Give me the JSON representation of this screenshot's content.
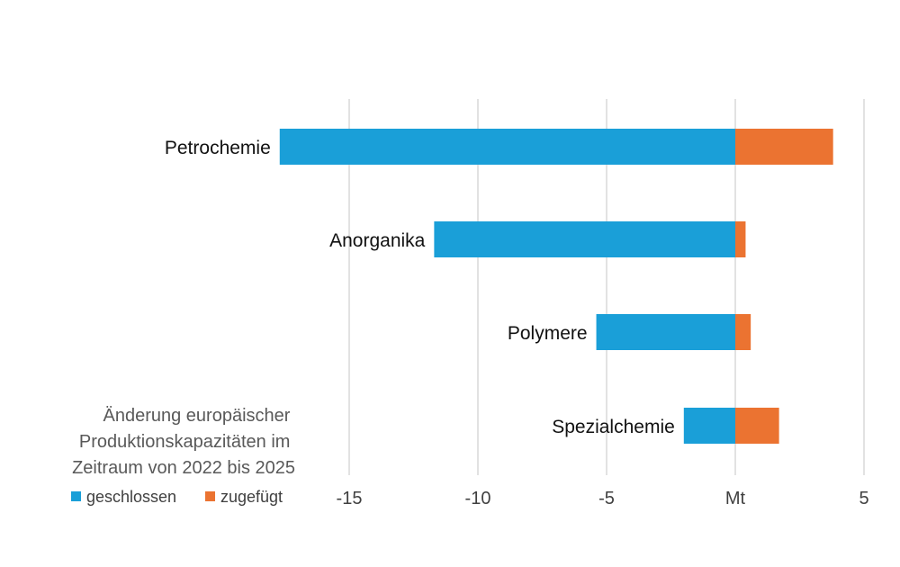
{
  "chart_data": {
    "type": "bar",
    "orientation": "horizontal",
    "stacked": true,
    "categories": [
      "Petrochemie",
      "Anorganika",
      "Polymere",
      "Spezialchemie"
    ],
    "series": [
      {
        "name": "geschlossen",
        "color": "#1a9fd8",
        "values": [
          -17.7,
          -11.7,
          -5.4,
          -2.0
        ]
      },
      {
        "name": "zugefügt",
        "color": "#eb7331",
        "values": [
          3.8,
          0.4,
          0.6,
          1.7
        ]
      }
    ],
    "xlim": [
      -20,
      5
    ],
    "xticks": [
      -15,
      -10,
      -5,
      0,
      5
    ],
    "xtick_labels": [
      "-15",
      "-10",
      "-5",
      "Mt",
      "5"
    ],
    "annotation": [
      "Änderung europäischer",
      "Produktionskapazitäten im",
      "Zeitraum von 2022 bis 2025"
    ],
    "grid": "vertical",
    "legend_position": "bottom-left"
  }
}
